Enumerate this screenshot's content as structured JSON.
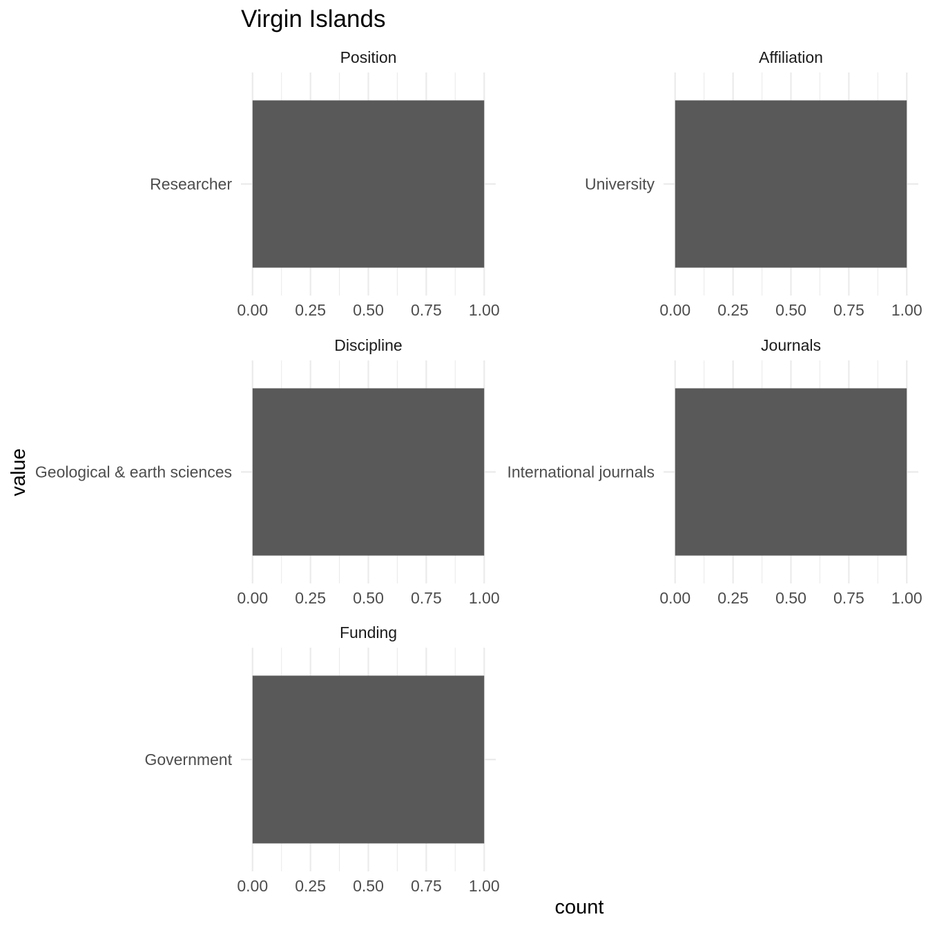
{
  "chart_data": {
    "type": "bar",
    "orientation": "horizontal",
    "title": "Virgin Islands",
    "xlabel": "count",
    "ylabel": "value",
    "xlim": [
      0,
      1
    ],
    "x_ticks": [
      "0.00",
      "0.25",
      "0.50",
      "0.75",
      "1.00"
    ],
    "grid": true,
    "bar_color": "#595959",
    "grid_color": "#ebebeb",
    "facets": [
      {
        "title": "Position",
        "categories": [
          "Researcher"
        ],
        "values": [
          1
        ]
      },
      {
        "title": "Affiliation",
        "categories": [
          "University"
        ],
        "values": [
          1
        ]
      },
      {
        "title": "Discipline",
        "categories": [
          "Geological & earth sciences"
        ],
        "values": [
          1
        ]
      },
      {
        "title": "Journals",
        "categories": [
          "International journals"
        ],
        "values": [
          1
        ]
      },
      {
        "title": "Funding",
        "categories": [
          "Government"
        ],
        "values": [
          1
        ]
      }
    ]
  }
}
